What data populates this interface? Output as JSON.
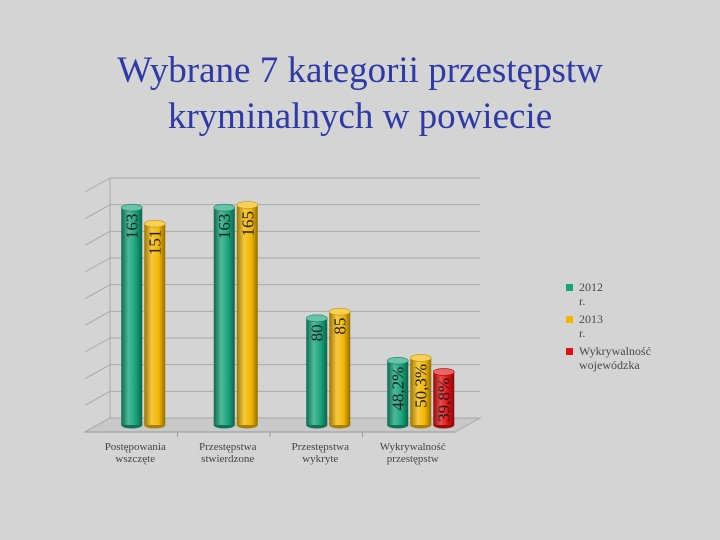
{
  "slide": {
    "title_line1": "Wybrane 7 kategorii przestępstw",
    "title_line2": "kryminalnych w powiecie"
  },
  "chart_data": {
    "type": "bar",
    "style": "3d-cylinder",
    "categories": [
      "Postępowania wszczęte",
      "Przestępstwa stwierdzone",
      "Przestępstwa wykryte",
      "Wykrywalność przestępstw"
    ],
    "category_labels": [
      [
        "Postępowania",
        "wszczęte"
      ],
      [
        "Przestępstwa",
        "stwierdzone"
      ],
      [
        "Przestępstwa",
        "wykryte"
      ],
      [
        "Wykrywalność",
        "przestępstw"
      ]
    ],
    "series": [
      {
        "name": "2012 r.",
        "color": "#16a37a",
        "values": [
          163,
          163,
          80,
          48.2
        ],
        "labels": [
          "163",
          "163",
          "80",
          "48,2%"
        ]
      },
      {
        "name": "2013 r.",
        "color": "#f2b600",
        "values": [
          151,
          165,
          85,
          50.3
        ],
        "labels": [
          "151",
          "165",
          "85",
          "50,3%"
        ]
      },
      {
        "name": "Wykrywalność wojewódzka",
        "legend_text": "Wykrywalność\nwojewódzka",
        "color": "#e01010",
        "values": [
          null,
          null,
          null,
          39.8
        ],
        "labels": [
          null,
          null,
          null,
          "39,8%"
        ]
      }
    ],
    "ylim": [
      0,
      180
    ],
    "grid": true,
    "legend_position": "right"
  }
}
